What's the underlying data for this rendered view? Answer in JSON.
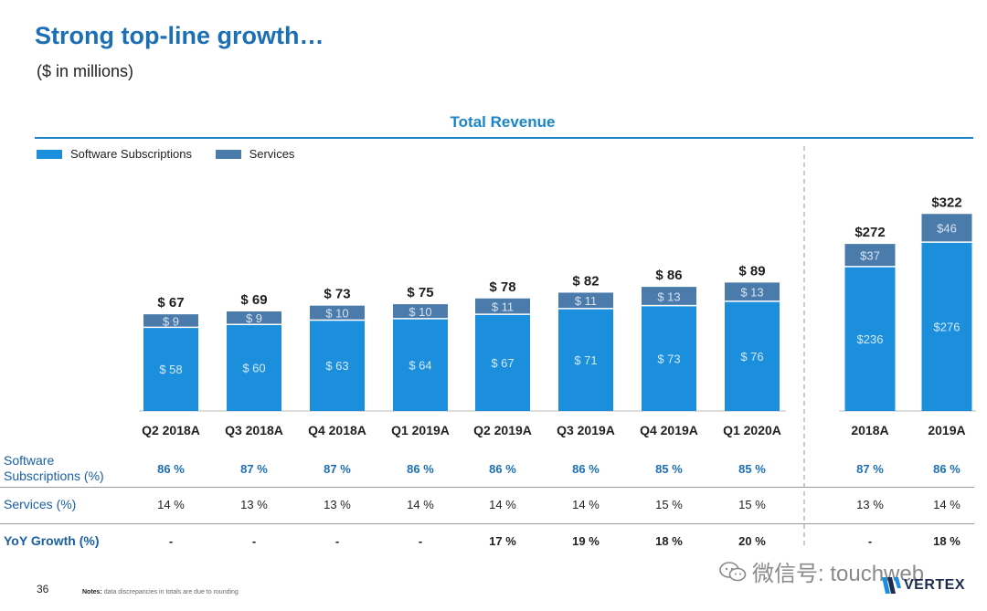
{
  "header": {
    "title": "Strong top-line growth…",
    "subtitle": "($ in millions)"
  },
  "colors": {
    "software": "#1b8fdc",
    "services": "#4a7bab",
    "title_blue": "#1c6fb5"
  },
  "chart_data": {
    "type": "bar",
    "stacked": true,
    "title": "Total Revenue",
    "categories": [
      "Q2 2018A",
      "Q3 2018A",
      "Q4 2018A",
      "Q1 2019A",
      "Q2 2019A",
      "Q3 2019A",
      "Q4 2019A",
      "Q1 2020A",
      "2018A",
      "2019A"
    ],
    "series": [
      {
        "name": "Software Subscriptions",
        "values": [
          58,
          60,
          63,
          64,
          67,
          71,
          73,
          76,
          236,
          276
        ],
        "labels": [
          "$ 58",
          "$ 60",
          "$ 63",
          "$ 64",
          "$ 67",
          "$ 71",
          "$ 73",
          "$ 76",
          "$236",
          "$276"
        ]
      },
      {
        "name": "Services",
        "values": [
          9,
          9,
          10,
          10,
          11,
          11,
          13,
          13,
          37,
          46
        ],
        "labels": [
          "$ 9",
          "$ 9",
          "$ 10",
          "$ 10",
          "$ 11",
          "$ 11",
          "$ 13",
          "$ 13",
          "$37",
          "$46"
        ]
      }
    ],
    "totals": [
      67,
      69,
      73,
      75,
      78,
      82,
      86,
      89,
      272,
      322
    ],
    "total_labels": [
      "$ 67",
      "$ 69",
      "$ 73",
      "$ 75",
      "$ 78",
      "$ 82",
      "$ 86",
      "$ 89",
      "$272",
      "$322"
    ],
    "groups": [
      "quarterly",
      "quarterly",
      "quarterly",
      "quarterly",
      "quarterly",
      "quarterly",
      "quarterly",
      "quarterly",
      "annual",
      "annual"
    ],
    "legend": "top-left"
  },
  "table": {
    "rows": [
      {
        "label": "Software\nSubscriptions (%)",
        "values": [
          "86 %",
          "87 %",
          "87 %",
          "86 %",
          "86 %",
          "86 %",
          "85 %",
          "85 %",
          "87 %",
          "86 %"
        ]
      },
      {
        "label": "Services (%)",
        "values": [
          "14 %",
          "13 %",
          "13 %",
          "14 %",
          "14 %",
          "14 %",
          "15 %",
          "15 %",
          "13 %",
          "14 %"
        ]
      },
      {
        "label": "YoY Growth (%)",
        "values": [
          "-",
          "-",
          "-",
          "-",
          "17 %",
          "19 %",
          "18 %",
          "20 %",
          "-",
          "18 %"
        ]
      }
    ]
  },
  "footer": {
    "page_number": "36",
    "note_label": "Notes:",
    "note_text": "data discrepancies in totals are due to rounding",
    "watermark": "微信号: touchweb",
    "logo": "VERTEX"
  }
}
